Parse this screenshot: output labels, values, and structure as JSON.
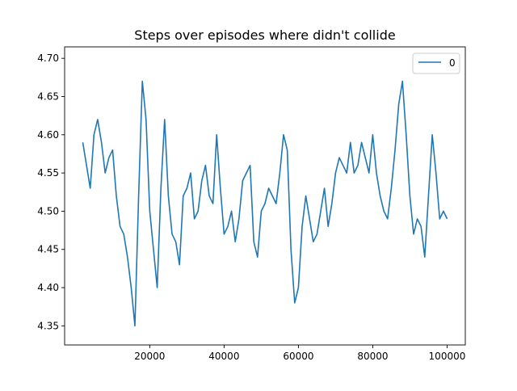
{
  "chart_data": {
    "type": "line",
    "title": "Steps over episodes where didn't collide",
    "xlabel": "",
    "ylabel": "",
    "xlim": [
      -2900,
      104900
    ],
    "ylim": [
      4.325,
      4.715
    ],
    "grid": false,
    "legend_position": "top-right",
    "x_ticks": [
      20000,
      40000,
      60000,
      80000,
      100000
    ],
    "x_tick_labels": [
      "20000",
      "40000",
      "60000",
      "80000",
      "100000"
    ],
    "y_ticks": [
      4.35,
      4.4,
      4.45,
      4.5,
      4.55,
      4.6,
      4.65,
      4.7
    ],
    "y_tick_labels": [
      "4.35",
      "4.40",
      "4.45",
      "4.50",
      "4.55",
      "4.60",
      "4.65",
      "4.70"
    ],
    "colors": {
      "series": "#1f77b4",
      "axes": "#000000"
    },
    "series": [
      {
        "name": "0",
        "x": [
          2000,
          3000,
          4000,
          5000,
          6000,
          7000,
          8000,
          9000,
          10000,
          11000,
          12000,
          13000,
          14000,
          15000,
          16000,
          17000,
          18000,
          19000,
          20000,
          21000,
          22000,
          23000,
          24000,
          25000,
          26000,
          27000,
          28000,
          29000,
          30000,
          31000,
          32000,
          33000,
          34000,
          35000,
          36000,
          37000,
          38000,
          39000,
          40000,
          41000,
          42000,
          43000,
          44000,
          45000,
          46000,
          47000,
          48000,
          49000,
          50000,
          51000,
          52000,
          53000,
          54000,
          55000,
          56000,
          57000,
          58000,
          59000,
          60000,
          61000,
          62000,
          63000,
          64000,
          65000,
          66000,
          67000,
          68000,
          69000,
          70000,
          71000,
          72000,
          73000,
          74000,
          75000,
          76000,
          77000,
          78000,
          79000,
          80000,
          81000,
          82000,
          83000,
          84000,
          85000,
          86000,
          87000,
          88000,
          89000,
          90000,
          91000,
          92000,
          93000,
          94000,
          95000,
          96000,
          97000,
          98000,
          99000,
          100000
        ],
        "values": [
          4.59,
          4.56,
          4.53,
          4.6,
          4.62,
          4.59,
          4.55,
          4.57,
          4.58,
          4.52,
          4.48,
          4.47,
          4.44,
          4.4,
          4.35,
          4.52,
          4.67,
          4.62,
          4.5,
          4.45,
          4.4,
          4.53,
          4.62,
          4.52,
          4.47,
          4.46,
          4.43,
          4.52,
          4.53,
          4.55,
          4.49,
          4.5,
          4.54,
          4.56,
          4.52,
          4.51,
          4.6,
          4.53,
          4.47,
          4.48,
          4.5,
          4.46,
          4.49,
          4.54,
          4.55,
          4.56,
          4.46,
          4.44,
          4.5,
          4.51,
          4.53,
          4.52,
          4.51,
          4.55,
          4.6,
          4.58,
          4.45,
          4.38,
          4.4,
          4.48,
          4.52,
          4.49,
          4.46,
          4.47,
          4.5,
          4.53,
          4.48,
          4.51,
          4.55,
          4.57,
          4.56,
          4.55,
          4.59,
          4.55,
          4.56,
          4.59,
          4.57,
          4.55,
          4.6,
          4.55,
          4.52,
          4.5,
          4.49,
          4.53,
          4.58,
          4.64,
          4.67,
          4.6,
          4.52,
          4.47,
          4.49,
          4.48,
          4.44,
          4.52,
          4.6,
          4.55,
          4.49,
          4.5,
          4.49
        ]
      }
    ]
  }
}
